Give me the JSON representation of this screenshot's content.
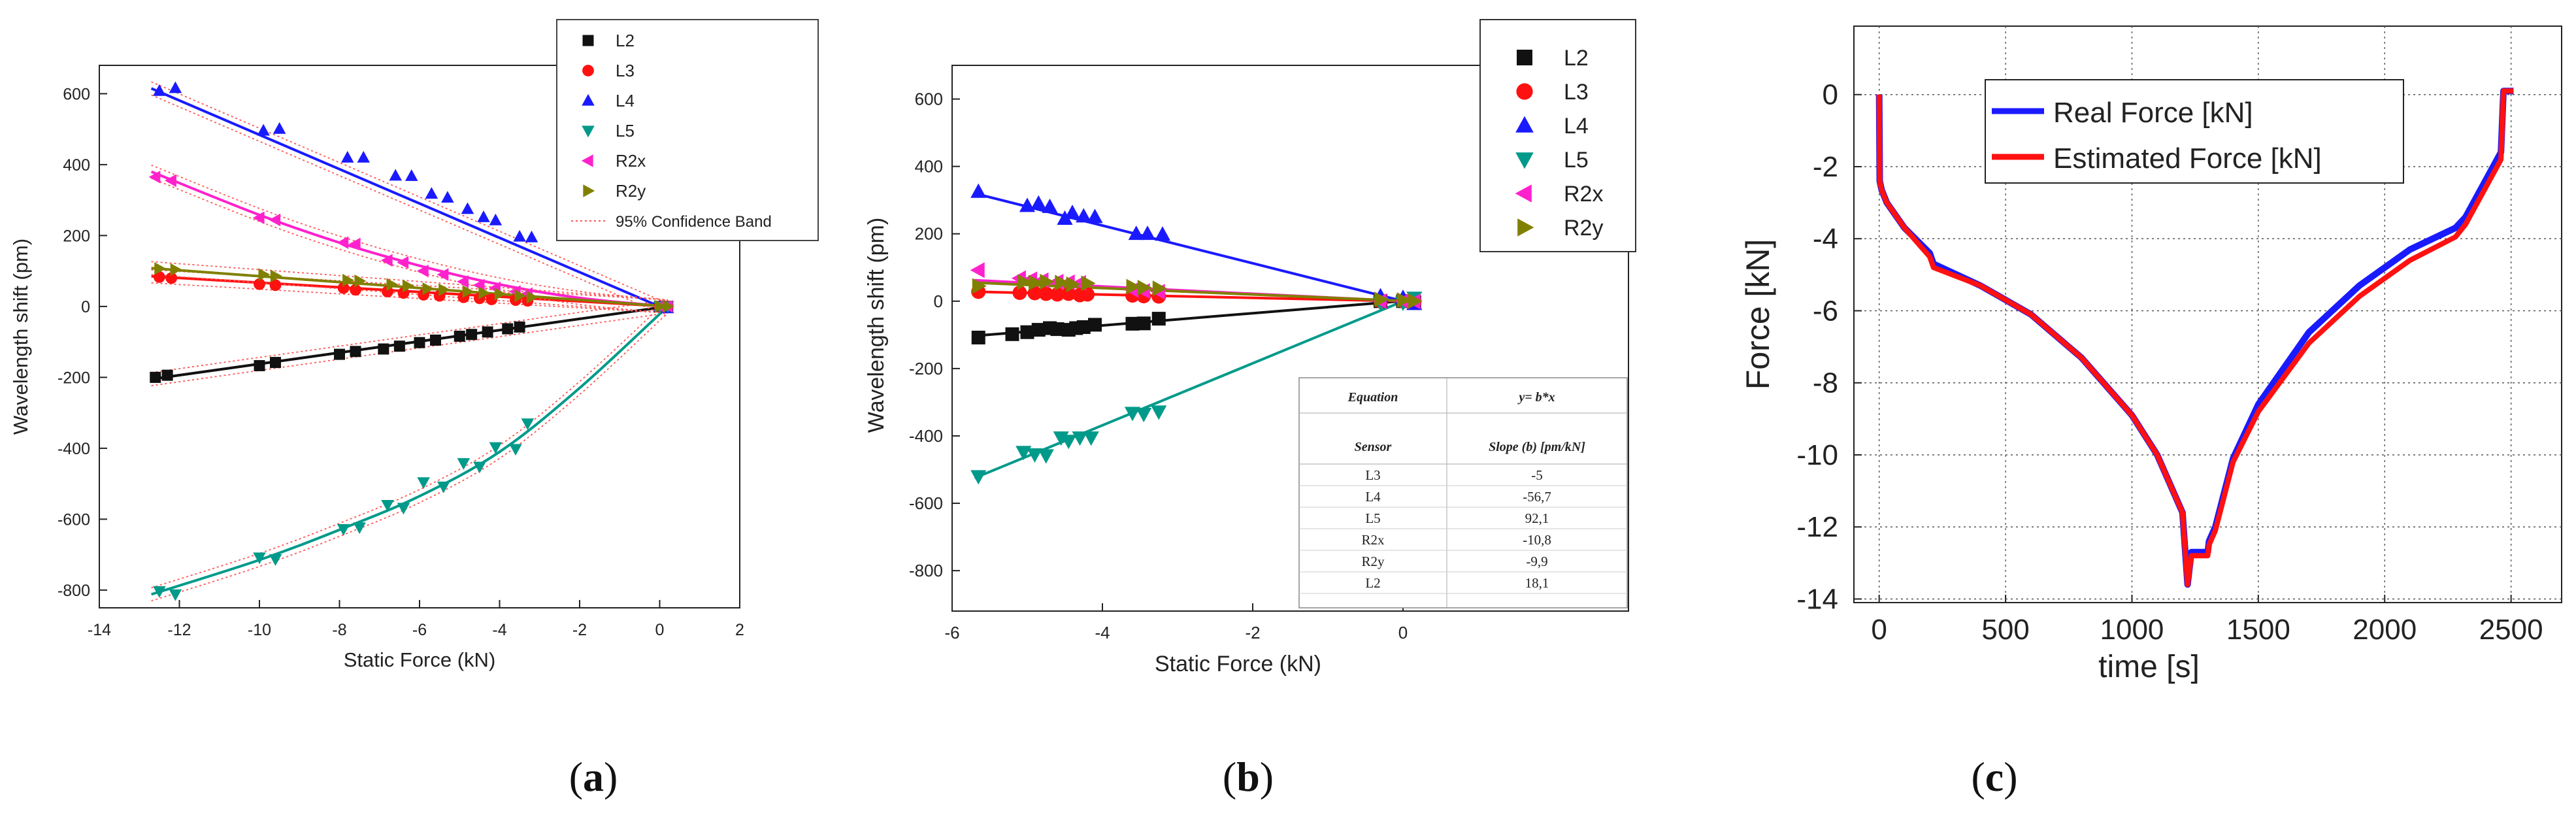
{
  "chart_data": [
    {
      "panel": "a",
      "type": "scatter",
      "caption_letter": "a",
      "xlabel": "Static Force (kN)",
      "ylabel": "Wavelength shift (pm)",
      "xlim": [
        -14,
        2
      ],
      "ylim": [
        -850,
        680
      ],
      "xticks": [
        -14,
        -12,
        -10,
        -8,
        -6,
        -4,
        -2,
        0,
        2
      ],
      "xtick_labels": [
        "-14",
        "-12",
        "-10",
        "-8",
        "-6",
        "-4",
        "-2",
        "0",
        "2"
      ],
      "yticks": [
        -800,
        -600,
        -400,
        -200,
        0,
        200,
        400,
        600
      ],
      "ytick_labels": [
        "-800",
        "-600",
        "-400",
        "-200",
        "0",
        "200",
        "400",
        "600"
      ],
      "legend_position": "top-right",
      "confidence_band_label": "95% Confidence Band",
      "series": [
        {
          "name": "L2",
          "color": "#111111",
          "marker": "square",
          "x": [
            -12.6,
            -12.3,
            -10.0,
            -9.6,
            -8.0,
            -7.6,
            -6.9,
            -6.5,
            -6.0,
            -5.6,
            -5.0,
            -4.7,
            -4.3,
            -3.8,
            -3.5,
            0.0,
            0.2
          ],
          "y": [
            -200,
            -194,
            -167,
            -158,
            -135,
            -127,
            -120,
            -112,
            -102,
            -95,
            -84,
            -79,
            -72,
            -63,
            -58,
            0,
            0
          ],
          "fit": {
            "kind": "linear",
            "x": [
              -12.7,
              0.2
            ],
            "y": [
              -205,
              0
            ]
          }
        },
        {
          "name": "L3",
          "color": "#ff1111",
          "marker": "circle",
          "x": [
            -12.5,
            -12.2,
            -10.0,
            -9.6,
            -7.9,
            -7.6,
            -6.8,
            -6.4,
            -5.9,
            -5.5,
            -4.9,
            -4.5,
            -4.2,
            -3.6,
            -3.3,
            0.0,
            0.2
          ],
          "y": [
            83,
            80,
            63,
            60,
            52,
            47,
            42,
            38,
            33,
            30,
            26,
            23,
            20,
            18,
            16,
            0,
            0
          ],
          "fit": {
            "kind": "linear",
            "x": [
              -12.7,
              0.2
            ],
            "y": [
              85,
              0
            ]
          }
        },
        {
          "name": "L4",
          "color": "#1a1aff",
          "marker": "triangle-up",
          "x": [
            -12.5,
            -12.1,
            -9.9,
            -9.5,
            -7.8,
            -7.4,
            -6.6,
            -6.2,
            -5.7,
            -5.3,
            -4.8,
            -4.4,
            -4.1,
            -3.5,
            -3.2,
            0.0,
            0.2
          ],
          "y": [
            608,
            616,
            496,
            501,
            420,
            420,
            369,
            368,
            318,
            307,
            275,
            252,
            243,
            197,
            195,
            0,
            -5
          ],
          "fit": {
            "kind": "linear",
            "x": [
              -12.7,
              0.2
            ],
            "y": [
              615,
              -10
            ]
          }
        },
        {
          "name": "L5",
          "color": "#009a8a",
          "marker": "triangle-down",
          "x": [
            -12.5,
            -12.1,
            -10.0,
            -9.6,
            -7.9,
            -7.5,
            -6.8,
            -6.4,
            -5.9,
            -5.4,
            -4.9,
            -4.5,
            -4.1,
            -3.6,
            -3.3,
            0.0,
            0.2
          ],
          "y": [
            -803,
            -812,
            -708,
            -713,
            -628,
            -623,
            -560,
            -568,
            -496,
            -508,
            -442,
            -452,
            -397,
            -402,
            -330,
            0,
            0
          ],
          "fit": {
            "kind": "quadratic",
            "x": [
              -12.7,
              -10,
              -8,
              -6,
              -4,
              -2,
              0.2
            ],
            "y": [
              -812,
              -715,
              -630,
              -535,
              -410,
              -230,
              0
            ]
          }
        },
        {
          "name": "R2x",
          "color": "#ff22cc",
          "marker": "triangle-left",
          "x": [
            -12.6,
            -12.2,
            -10.0,
            -9.6,
            -7.9,
            -7.6,
            -6.8,
            -6.4,
            -5.9,
            -5.4,
            -4.9,
            -4.5,
            -4.1,
            -3.6,
            -3.3,
            0.0,
            0.2
          ],
          "y": [
            365,
            355,
            250,
            244,
            180,
            176,
            130,
            124,
            100,
            90,
            70,
            60,
            52,
            42,
            36,
            0,
            0
          ],
          "fit": {
            "kind": "quadratic",
            "x": [
              -12.7,
              -10,
              -8,
              -6,
              -4,
              -2,
              0.2
            ],
            "y": [
              380,
              258,
              180,
              115,
              62,
              24,
              0
            ]
          }
        },
        {
          "name": "R2y",
          "color": "#808000",
          "marker": "triangle-right",
          "x": [
            -12.5,
            -12.1,
            -9.9,
            -9.6,
            -7.8,
            -7.5,
            -6.7,
            -6.3,
            -5.8,
            -5.4,
            -4.8,
            -4.4,
            -4.0,
            -3.5,
            -3.2,
            0.0,
            0.2
          ],
          "y": [
            107,
            104,
            90,
            86,
            74,
            72,
            62,
            58,
            50,
            47,
            42,
            38,
            35,
            30,
            26,
            0,
            0
          ],
          "fit": {
            "kind": "linear",
            "x": [
              -12.7,
              0.2
            ],
            "y": [
              108,
              0
            ]
          }
        }
      ]
    },
    {
      "panel": "b",
      "type": "scatter",
      "caption_letter": "b",
      "xlabel": "Static Force (kN)",
      "ylabel": "Wavelength shift (pm)",
      "xlim": [
        -6,
        3
      ],
      "ylim": [
        -920,
        700
      ],
      "xticks": [
        -6,
        -4,
        -2,
        0
      ],
      "xtick_labels": [
        "-6",
        "-4",
        "-2",
        "0"
      ],
      "yticks": [
        -800,
        -600,
        -400,
        -200,
        0,
        200,
        400,
        600
      ],
      "ytick_labels": [
        "-800",
        "-600",
        "-400",
        "-200",
        "0",
        "200",
        "400",
        "600"
      ],
      "legend_position": "top-right",
      "series": [
        {
          "name": "L2",
          "color": "#111111",
          "marker": "square",
          "x": [
            -5.65,
            -5.2,
            -5.0,
            -4.85,
            -4.7,
            -4.6,
            -4.45,
            -4.35,
            -4.25,
            -4.1,
            -3.6,
            -3.45,
            -3.25,
            -0.3,
            0.0,
            0.15
          ],
          "y": [
            -108,
            -98,
            -92,
            -85,
            -80,
            -83,
            -85,
            -80,
            -77,
            -70,
            -67,
            -66,
            -52,
            0,
            0,
            -3
          ],
          "fit": {
            "kind": "linear",
            "x": [
              -5.7,
              0.2
            ],
            "y": [
              -103,
              4
            ]
          }
        },
        {
          "name": "L3",
          "color": "#ff1111",
          "marker": "circle",
          "x": [
            -5.65,
            -5.1,
            -4.9,
            -4.75,
            -4.6,
            -4.45,
            -4.3,
            -4.2,
            -3.6,
            -3.45,
            -3.25,
            -0.3,
            0.0,
            0.15
          ],
          "y": [
            28,
            25,
            24,
            22,
            20,
            22,
            18,
            20,
            17,
            15,
            14,
            0,
            0,
            -1
          ],
          "fit": {
            "kind": "linear",
            "x": [
              -5.7,
              0.2
            ],
            "y": [
              28,
              -1
            ]
          }
        },
        {
          "name": "L4",
          "color": "#1a1aff",
          "marker": "triangle-up",
          "x": [
            -5.65,
            -5.0,
            -4.85,
            -4.7,
            -4.5,
            -4.4,
            -4.25,
            -4.1,
            -3.55,
            -3.4,
            -3.2,
            -0.3,
            0.0,
            0.15
          ],
          "y": [
            325,
            283,
            290,
            280,
            245,
            262,
            252,
            250,
            200,
            200,
            198,
            15,
            10,
            -8
          ],
          "fit": {
            "kind": "linear",
            "x": [
              -5.7,
              0.2
            ],
            "y": [
              320,
              -11
            ]
          }
        },
        {
          "name": "L5",
          "color": "#009a8a",
          "marker": "triangle-down",
          "x": [
            -5.65,
            -5.05,
            -4.9,
            -4.75,
            -4.55,
            -4.45,
            -4.3,
            -4.15,
            -3.6,
            -3.45,
            -3.25,
            -0.3,
            0.0,
            0.15
          ],
          "y": [
            -520,
            -448,
            -455,
            -458,
            -405,
            -415,
            -405,
            -405,
            -332,
            -335,
            -328,
            -5,
            -5,
            10
          ],
          "fit": {
            "kind": "linear",
            "x": [
              -5.7,
              0.2
            ],
            "y": [
              -525,
              18
            ]
          }
        },
        {
          "name": "R2x",
          "color": "#ff22cc",
          "marker": "triangle-left",
          "x": [
            -5.65,
            -5.1,
            -4.95,
            -4.8,
            -4.6,
            -4.45,
            -4.3,
            -3.6,
            -3.45,
            -3.25,
            -0.3,
            0.0,
            0.15
          ],
          "y": [
            92,
            68,
            65,
            62,
            58,
            56,
            54,
            33,
            30,
            28,
            0,
            0,
            -1
          ],
          "fit": {
            "kind": "linear",
            "x": [
              -5.7,
              0.2
            ],
            "y": [
              62,
              -2
            ]
          }
        },
        {
          "name": "R2y",
          "color": "#808000",
          "marker": "triangle-right",
          "x": [
            -5.65,
            -5.05,
            -4.9,
            -4.75,
            -4.55,
            -4.4,
            -4.2,
            -3.6,
            -3.45,
            -3.25,
            -0.3,
            0.0,
            0.15
          ],
          "y": [
            45,
            57,
            55,
            58,
            55,
            50,
            53,
            43,
            40,
            38,
            5,
            3,
            0
          ],
          "fit": {
            "kind": "linear",
            "x": [
              -5.7,
              0.2
            ],
            "y": [
              55,
              -1
            ]
          }
        }
      ],
      "table": {
        "headers": [
          "Equation",
          "y= b*x"
        ],
        "subheaders": [
          "Sensor",
          "Slope (b) [pm/kN]"
        ],
        "rows": [
          [
            "L3",
            "-5"
          ],
          [
            "L4",
            "-56,7"
          ],
          [
            "L5",
            "92,1"
          ],
          [
            "R2x",
            "-10,8"
          ],
          [
            "R2y",
            "-9,9"
          ],
          [
            "L2",
            "18,1"
          ]
        ]
      }
    },
    {
      "panel": "c",
      "type": "line",
      "caption_letter": "c",
      "xlabel": "time [s]",
      "ylabel": "Force [kN]",
      "xlim": [
        -100,
        2700
      ],
      "ylim": [
        -14.1,
        1.9
      ],
      "xticks": [
        0,
        500,
        1000,
        1500,
        2000,
        2500
      ],
      "xtick_labels": [
        "0",
        "500",
        "1000",
        "1500",
        "2000",
        "2500"
      ],
      "yticks": [
        0,
        -2,
        -4,
        -6,
        -8,
        -10,
        -12,
        -14
      ],
      "ytick_labels": [
        "0",
        "-2",
        "-4",
        "-6",
        "-8",
        "-10",
        "-12",
        "-14"
      ],
      "grid": true,
      "legend_position": "top-left",
      "series": [
        {
          "name": "Real Force [kN]",
          "color": "#1a1aff",
          "x": [
            0,
            2,
            10,
            30,
            100,
            200,
            215,
            400,
            600,
            800,
            1000,
            1100,
            1200,
            1220,
            1235,
            1300,
            1305,
            1330,
            1400,
            1500,
            1700,
            1900,
            2100,
            2280,
            2320,
            2460,
            2470,
            2510
          ],
          "y": [
            0,
            -2.4,
            -2.65,
            -3.0,
            -3.7,
            -4.4,
            -4.7,
            -5.3,
            -6.1,
            -7.3,
            -8.9,
            -10.0,
            -11.6,
            -13.6,
            -12.7,
            -12.7,
            -12.4,
            -12.0,
            -10.1,
            -8.6,
            -6.6,
            -5.3,
            -4.3,
            -3.7,
            -3.4,
            -1.6,
            0.1,
            0.1
          ]
        },
        {
          "name": "Estimated Force [kN]",
          "color": "#ff1111",
          "x": [
            0,
            2,
            10,
            30,
            100,
            200,
            215,
            400,
            600,
            800,
            1000,
            1100,
            1200,
            1220,
            1235,
            1300,
            1305,
            1330,
            1400,
            1500,
            1700,
            1900,
            2100,
            2280,
            2320,
            2460,
            2470,
            2510
          ],
          "y": [
            0,
            -2.4,
            -2.65,
            -3.0,
            -3.7,
            -4.5,
            -4.8,
            -5.3,
            -6.1,
            -7.3,
            -8.9,
            -10.0,
            -11.6,
            -13.6,
            -12.8,
            -12.8,
            -12.5,
            -12.1,
            -10.2,
            -8.8,
            -6.9,
            -5.6,
            -4.6,
            -3.95,
            -3.6,
            -1.8,
            0.1,
            0.1
          ]
        }
      ]
    }
  ]
}
